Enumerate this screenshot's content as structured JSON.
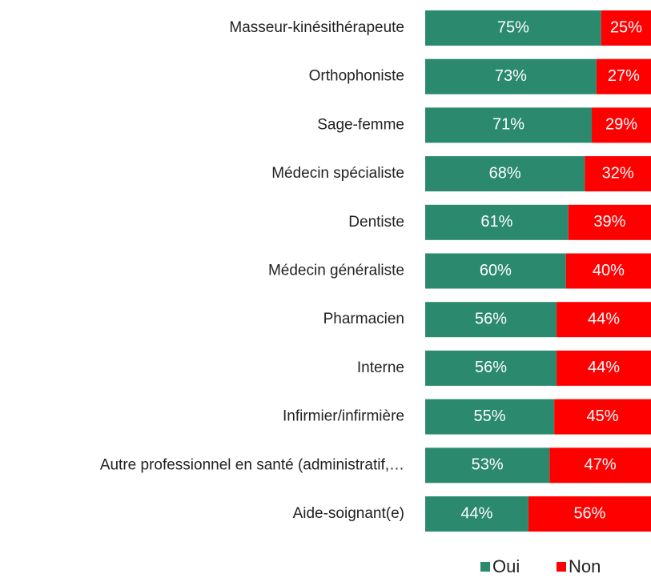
{
  "chart_data": {
    "type": "stacked-bar-horizontal",
    "categories": [
      "Masseur-kinésithérapeute",
      "Orthophoniste",
      "Sage-femme",
      "Médecin spécialiste",
      "Dentiste",
      "Médecin généraliste",
      "Pharmacien",
      "Interne",
      "Infirmier/infirmière",
      "Autre professionnel en santé (administratif,…",
      "Aide-soignant(e)"
    ],
    "series": [
      {
        "name": "Oui",
        "color": "#2b8a6e",
        "values": [
          75,
          73,
          71,
          68,
          61,
          60,
          56,
          56,
          55,
          53,
          44
        ],
        "value_labels": [
          "75%",
          "73%",
          "71%",
          "68%",
          "61%",
          "60%",
          "56%",
          "56%",
          "55%",
          "53%",
          "44%"
        ]
      },
      {
        "name": "Non",
        "color": "#ff0000",
        "values": [
          25,
          27,
          29,
          32,
          39,
          40,
          44,
          44,
          45,
          47,
          56
        ],
        "value_labels": [
          "25%",
          "27%",
          "29%",
          "32%",
          "39%",
          "40%",
          "44%",
          "44%",
          "45%",
          "47%",
          "56%"
        ]
      }
    ],
    "xlim": [
      0,
      100
    ],
    "legend": "bottom"
  }
}
